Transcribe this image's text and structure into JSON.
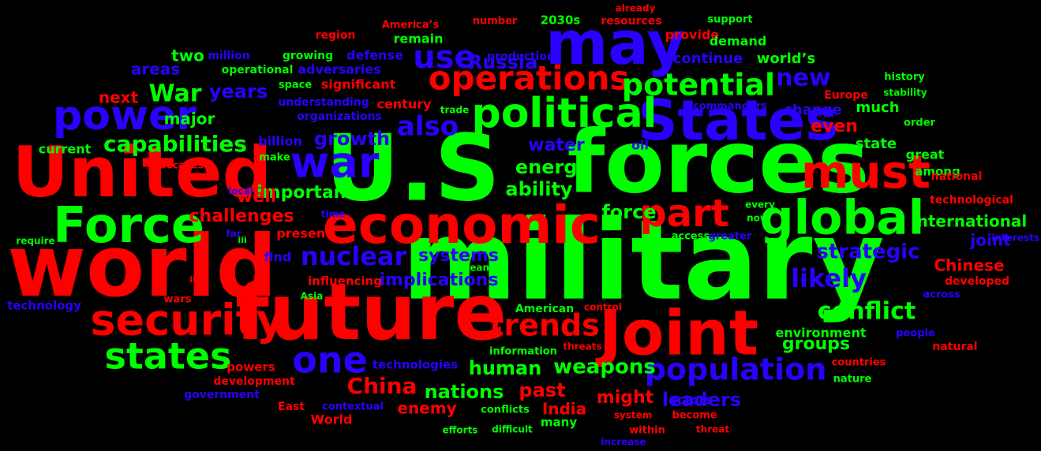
{
  "colors": {
    "background": "#000000",
    "red": "#ff0000",
    "green": "#00ff00",
    "blue": "#2b00ff"
  },
  "words": [
    {
      "text": "military",
      "color": "green"
    },
    {
      "text": "future",
      "color": "red"
    },
    {
      "text": "world",
      "color": "red"
    },
    {
      "text": "U.S",
      "color": "green"
    },
    {
      "text": "forces",
      "color": "green"
    },
    {
      "text": "States",
      "color": "blue"
    },
    {
      "text": "United",
      "color": "red"
    },
    {
      "text": "Joint",
      "color": "red"
    },
    {
      "text": "may",
      "color": "blue"
    },
    {
      "text": "economic",
      "color": "red"
    },
    {
      "text": "global",
      "color": "green"
    },
    {
      "text": "Force",
      "color": "green"
    },
    {
      "text": "must",
      "color": "red"
    },
    {
      "text": "security",
      "color": "red"
    },
    {
      "text": "war",
      "color": "blue"
    },
    {
      "text": "political",
      "color": "green"
    },
    {
      "text": "power",
      "color": "blue"
    },
    {
      "text": "part",
      "color": "red"
    },
    {
      "text": "states",
      "color": "green"
    },
    {
      "text": "population",
      "color": "blue"
    },
    {
      "text": "operations",
      "color": "red"
    },
    {
      "text": "one",
      "color": "blue"
    },
    {
      "text": "potential",
      "color": "green"
    },
    {
      "text": "trends",
      "color": "red"
    },
    {
      "text": "also",
      "color": "blue"
    },
    {
      "text": "use",
      "color": "blue"
    },
    {
      "text": "nuclear",
      "color": "blue"
    },
    {
      "text": "conflict",
      "color": "green"
    },
    {
      "text": "likely",
      "color": "blue"
    },
    {
      "text": "capabilities",
      "color": "green"
    },
    {
      "text": "China",
      "color": "red"
    },
    {
      "text": "weapons",
      "color": "green"
    },
    {
      "text": "new",
      "color": "blue"
    },
    {
      "text": "strategic",
      "color": "blue"
    },
    {
      "text": "War",
      "color": "green"
    },
    {
      "text": "human",
      "color": "green"
    },
    {
      "text": "nations",
      "color": "green"
    },
    {
      "text": "ability",
      "color": "green"
    },
    {
      "text": "energy",
      "color": "green"
    },
    {
      "text": "force",
      "color": "green"
    },
    {
      "text": "past",
      "color": "red"
    },
    {
      "text": "growth",
      "color": "blue"
    },
    {
      "text": "water",
      "color": "blue"
    },
    {
      "text": "years",
      "color": "blue"
    },
    {
      "text": "important",
      "color": "green"
    },
    {
      "text": "challenges",
      "color": "red"
    },
    {
      "text": "systems",
      "color": "blue"
    },
    {
      "text": "implications",
      "color": "blue"
    },
    {
      "text": "leaders",
      "color": "blue"
    },
    {
      "text": "groups",
      "color": "green"
    },
    {
      "text": "Russia",
      "color": "blue"
    },
    {
      "text": "international",
      "color": "green"
    },
    {
      "text": "might",
      "color": "red"
    },
    {
      "text": "India",
      "color": "red"
    },
    {
      "text": "well",
      "color": "red"
    },
    {
      "text": "even",
      "color": "red"
    },
    {
      "text": "major",
      "color": "green"
    },
    {
      "text": "areas",
      "color": "blue"
    },
    {
      "text": "two",
      "color": "green"
    },
    {
      "text": "joint",
      "color": "blue"
    },
    {
      "text": "much",
      "color": "green"
    },
    {
      "text": "state",
      "color": "green"
    },
    {
      "text": "change",
      "color": "blue"
    },
    {
      "text": "enemy",
      "color": "red"
    },
    {
      "text": "continue",
      "color": "blue"
    },
    {
      "text": "Chinese",
      "color": "red"
    },
    {
      "text": "world’s",
      "color": "green"
    },
    {
      "text": "next",
      "color": "red"
    },
    {
      "text": "find",
      "color": "blue"
    },
    {
      "text": "present",
      "color": "red"
    },
    {
      "text": "environment",
      "color": "green"
    },
    {
      "text": "actors",
      "color": "blue"
    },
    {
      "text": "remain",
      "color": "green"
    },
    {
      "text": "defense",
      "color": "blue"
    },
    {
      "text": "significant",
      "color": "red"
    },
    {
      "text": "adversaries",
      "color": "blue"
    },
    {
      "text": "provide",
      "color": "red"
    },
    {
      "text": "demand",
      "color": "green"
    },
    {
      "text": "oil",
      "color": "blue"
    },
    {
      "text": "great",
      "color": "green"
    },
    {
      "text": "among",
      "color": "green"
    },
    {
      "text": "national",
      "color": "red"
    },
    {
      "text": "technological",
      "color": "red"
    },
    {
      "text": "current",
      "color": "green"
    },
    {
      "text": "billion",
      "color": "blue"
    },
    {
      "text": "century",
      "color": "red"
    },
    {
      "text": "understanding",
      "color": "blue"
    },
    {
      "text": "organizations",
      "color": "blue"
    },
    {
      "text": "production",
      "color": "blue"
    },
    {
      "text": "operational",
      "color": "green"
    },
    {
      "text": "growing",
      "color": "green"
    },
    {
      "text": "million",
      "color": "blue"
    },
    {
      "text": "region",
      "color": "red"
    },
    {
      "text": "America’s",
      "color": "red"
    },
    {
      "text": "number",
      "color": "red"
    },
    {
      "text": "2030s",
      "color": "green"
    },
    {
      "text": "already",
      "color": "red"
    },
    {
      "text": "resources",
      "color": "red"
    },
    {
      "text": "support",
      "color": "green"
    },
    {
      "text": "history",
      "color": "green"
    },
    {
      "text": "stability",
      "color": "green"
    },
    {
      "text": "Europe",
      "color": "red"
    },
    {
      "text": "commanders",
      "color": "blue"
    },
    {
      "text": "trade",
      "color": "green"
    },
    {
      "text": "space",
      "color": "green"
    },
    {
      "text": "order",
      "color": "green"
    },
    {
      "text": "decades",
      "color": "red"
    },
    {
      "text": "make",
      "color": "green"
    },
    {
      "text": "local",
      "color": "blue"
    },
    {
      "text": "require",
      "color": "green"
    },
    {
      "text": "far",
      "color": "blue"
    },
    {
      "text": "iii",
      "color": "green"
    },
    {
      "text": "time",
      "color": "blue"
    },
    {
      "text": "every",
      "color": "green"
    },
    {
      "text": "now",
      "color": "green"
    },
    {
      "text": "access",
      "color": "green"
    },
    {
      "text": "greater",
      "color": "blue"
    },
    {
      "text": "interests",
      "color": "blue"
    },
    {
      "text": "influencing",
      "color": "red"
    },
    {
      "text": "means",
      "color": "green"
    },
    {
      "text": "developed",
      "color": "red"
    },
    {
      "text": "across",
      "color": "blue"
    },
    {
      "text": "ii",
      "color": "red"
    },
    {
      "text": "Asia",
      "color": "green"
    },
    {
      "text": "technology",
      "color": "blue"
    },
    {
      "text": "wars",
      "color": "red"
    },
    {
      "text": "American",
      "color": "green"
    },
    {
      "text": "control",
      "color": "red"
    },
    {
      "text": "information",
      "color": "green"
    },
    {
      "text": "threats",
      "color": "red"
    },
    {
      "text": "people",
      "color": "blue"
    },
    {
      "text": "natural",
      "color": "red"
    },
    {
      "text": "powers",
      "color": "red"
    },
    {
      "text": "development",
      "color": "red"
    },
    {
      "text": "technologies",
      "color": "blue"
    },
    {
      "text": "countries",
      "color": "red"
    },
    {
      "text": "nature",
      "color": "green"
    },
    {
      "text": "government",
      "color": "blue"
    },
    {
      "text": "contextual",
      "color": "blue"
    },
    {
      "text": "East",
      "color": "red"
    },
    {
      "text": "World",
      "color": "red"
    },
    {
      "text": "efforts",
      "color": "green"
    },
    {
      "text": "difficult",
      "color": "green"
    },
    {
      "text": "conflicts",
      "color": "green"
    },
    {
      "text": "many",
      "color": "green"
    },
    {
      "text": "system",
      "color": "red"
    },
    {
      "text": "within",
      "color": "red"
    },
    {
      "text": "increase",
      "color": "blue"
    },
    {
      "text": "become",
      "color": "red"
    },
    {
      "text": "threat",
      "color": "red"
    }
  ]
}
